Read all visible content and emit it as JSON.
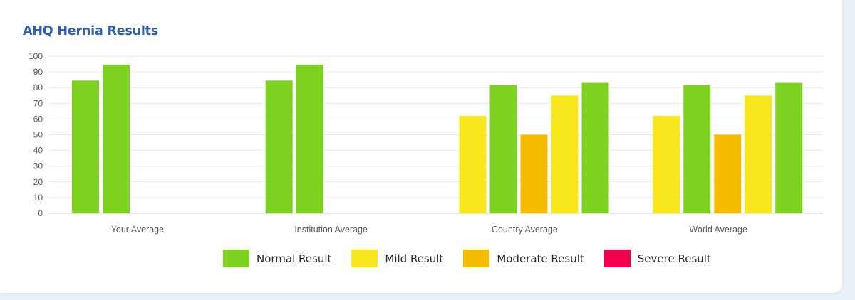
{
  "title": "AHQ Hernia Results",
  "colors": {
    "Normal Result": "#7ed321",
    "Mild Result": "#f8e71c",
    "Moderate Result": "#f5bc00",
    "Severe Result": "#f5004f"
  },
  "chart_data": {
    "type": "bar",
    "title": "AHQ Hernia Results",
    "xlabel": "",
    "ylabel": "",
    "ylim": [
      0,
      100
    ],
    "yticks": [
      0,
      10,
      20,
      30,
      40,
      50,
      60,
      70,
      80,
      90,
      100
    ],
    "grid": true,
    "legend_position": "bottom",
    "legend": [
      "Normal Result",
      "Mild Result",
      "Moderate Result",
      "Severe Result"
    ],
    "categories": [
      "Your Average",
      "Institution Average",
      "Country Average",
      "World Average"
    ],
    "groups": [
      {
        "category": "Your Average",
        "bars": [
          {
            "series": "Normal Result",
            "value": 84.5
          },
          {
            "series": "Normal Result",
            "value": 94.5
          }
        ]
      },
      {
        "category": "Institution Average",
        "bars": [
          {
            "series": "Normal Result",
            "value": 84.5
          },
          {
            "series": "Normal Result",
            "value": 94.5
          }
        ]
      },
      {
        "category": "Country Average",
        "bars": [
          {
            "series": "Mild Result",
            "value": 62
          },
          {
            "series": "Normal Result",
            "value": 81.5
          },
          {
            "series": "Moderate Result",
            "value": 50
          },
          {
            "series": "Mild Result",
            "value": 75
          },
          {
            "series": "Normal Result",
            "value": 83
          }
        ]
      },
      {
        "category": "World Average",
        "bars": [
          {
            "series": "Mild Result",
            "value": 62
          },
          {
            "series": "Normal Result",
            "value": 81.5
          },
          {
            "series": "Moderate Result",
            "value": 50
          },
          {
            "series": "Mild Result",
            "value": 75
          },
          {
            "series": "Normal Result",
            "value": 83
          }
        ]
      }
    ]
  }
}
